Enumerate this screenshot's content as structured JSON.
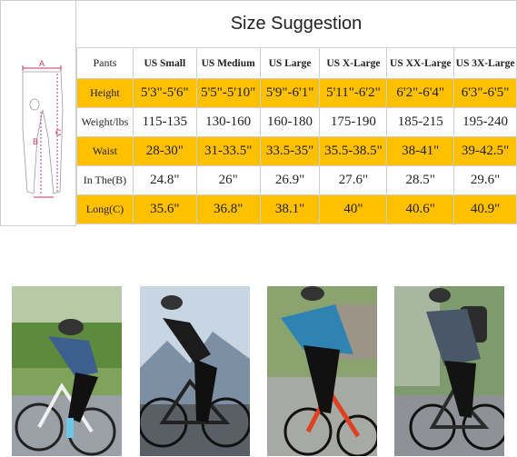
{
  "chart": {
    "title": "Size Suggestion",
    "diagram_labels": {
      "a": "A",
      "b": "B",
      "c": "C"
    },
    "headers": [
      "Pants",
      "US Small",
      "US Medium",
      "US Large",
      "US X-Large",
      "US XX-Large",
      "US 3X-Large"
    ],
    "rows": [
      {
        "label": "Height",
        "values": [
          "5'3\"-5'6\"",
          "5'5\"-5'10\"",
          "5'9\"-6'1\"",
          "5'11\"-6'2\"",
          "6'2\"-6'4\"",
          "6'3\"-6'5\""
        ]
      },
      {
        "label": "Weight/lbs",
        "values": [
          "115-135",
          "130-160",
          "160-180",
          "175-190",
          "185-215",
          "195-240"
        ]
      },
      {
        "label": "Waist",
        "values": [
          "28-30\"",
          "31-33.5\"",
          "33.5-35\"",
          "35.5-38.5\"",
          "38-41\"",
          "39-42.5\""
        ]
      },
      {
        "label": "In The(B)",
        "values": [
          "24.8\"",
          "26\"",
          "26.9\"",
          "27.6\"",
          "28.5\"",
          "29.6\""
        ]
      },
      {
        "label": "Long(C)",
        "values": [
          "35.6\"",
          "36.8\"",
          "38.1\"",
          "40\"",
          "40.6\"",
          "40.9\""
        ]
      }
    ]
  },
  "colors": {
    "highlight": "#ffc000",
    "border": "#cfcfcf",
    "measure": "#c4366e"
  }
}
